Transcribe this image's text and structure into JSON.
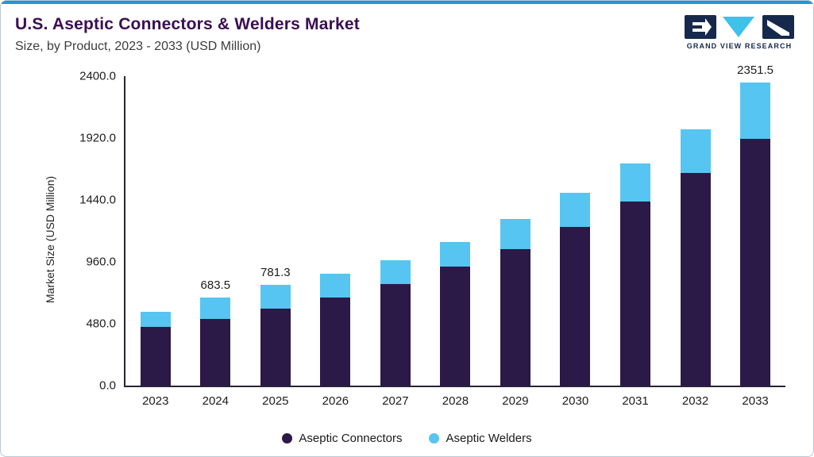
{
  "logo": {
    "text": "GRAND VIEW RESEARCH"
  },
  "colors": {
    "accent_bar": "#2196d3",
    "title": "#3a0e52",
    "navy": "#16294c",
    "connectors": "#2b1947",
    "welders": "#56c5f1"
  },
  "chart_data": {
    "type": "bar",
    "stacked": true,
    "title": "U.S. Aseptic Connectors & Welders Market",
    "subtitle": "Size, by Product, 2023 - 2033 (USD Million)",
    "ylabel": "Market Size (USD Million)",
    "categories": [
      "2023",
      "2024",
      "2025",
      "2026",
      "2027",
      "2028",
      "2029",
      "2030",
      "2031",
      "2032",
      "2033"
    ],
    "series": [
      {
        "name": "Aseptic Connectors",
        "color": "#2b1947",
        "values": [
          455,
          520,
          595,
          685,
          790,
          925,
          1060,
          1230,
          1425,
          1650,
          1915
        ]
      },
      {
        "name": "Aseptic Welders",
        "color": "#56c5f1",
        "values": [
          115,
          163.5,
          186.3,
          185,
          185,
          190,
          230,
          265,
          300,
          340,
          436.5
        ]
      }
    ],
    "totals_shown": [
      "",
      "683.5",
      "781.3",
      "",
      "",
      "",
      "",
      "",
      "",
      "",
      "2351.5"
    ],
    "ylim": [
      0,
      2400
    ],
    "yticks": [
      0,
      480,
      960,
      1440,
      1920,
      2400
    ],
    "ytick_labels": [
      "0.0",
      "480.0",
      "960.0",
      "1440.0",
      "1920.0",
      "2400.0"
    ],
    "grid": false,
    "legend_position": "bottom"
  }
}
